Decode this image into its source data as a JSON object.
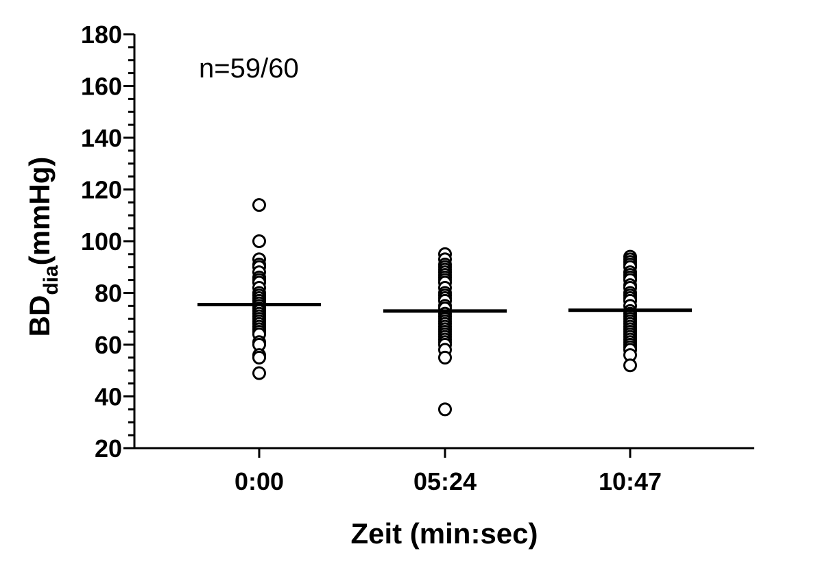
{
  "chart_data": {
    "type": "scatter",
    "annotation": "n=59/60",
    "xlabel": "Zeit (min:sec)",
    "ylabel_main": "BD",
    "ylabel_sub": "dia",
    "ylabel_unit": "(mmHg)",
    "ylim": [
      20,
      180
    ],
    "yticks": [
      20,
      40,
      60,
      80,
      100,
      120,
      140,
      160,
      180
    ],
    "categories": [
      "0:00",
      "05:24",
      "10:47"
    ],
    "means": [
      75.5,
      73,
      73.3
    ],
    "groups": [
      [
        114,
        100,
        93,
        91,
        90,
        88,
        86,
        85,
        84,
        82,
        80,
        79,
        78,
        77,
        76,
        75,
        74,
        73,
        72,
        71,
        70,
        69,
        68,
        67,
        66,
        65,
        64,
        61,
        60,
        56,
        55,
        49
      ],
      [
        95,
        93,
        91,
        90,
        89,
        88,
        87,
        86,
        85,
        84,
        82,
        80,
        79,
        78,
        77,
        75,
        74,
        72,
        71,
        70,
        69,
        68,
        67,
        66,
        65,
        64,
        63,
        62,
        61,
        60,
        58,
        55,
        35
      ],
      [
        94,
        93,
        92,
        91,
        90,
        88,
        87,
        86,
        85,
        83,
        82,
        80,
        79,
        78,
        77,
        75,
        73,
        72,
        71,
        70,
        69,
        68,
        67,
        66,
        65,
        64,
        63,
        62,
        61,
        60,
        59,
        58,
        56,
        52
      ]
    ]
  }
}
